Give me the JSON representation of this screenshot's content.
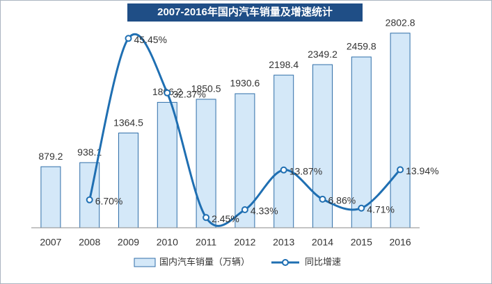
{
  "chart_data": {
    "type": "bar",
    "title": "2007-2016年国内汽车销量及增速统计",
    "categories": [
      "2007",
      "2008",
      "2009",
      "2010",
      "2011",
      "2012",
      "2013",
      "2014",
      "2015",
      "2016"
    ],
    "series": [
      {
        "name": "国内汽车销量（万辆）",
        "type": "bar",
        "color": "#d4e8f8",
        "stroke": "#2f6ea8",
        "values": [
          879.2,
          938.1,
          1364.5,
          1806.2,
          1850.5,
          1930.6,
          2198.4,
          2349.2,
          2459.8,
          2802.8
        ]
      },
      {
        "name": "同比增速",
        "type": "line",
        "axis": "y2",
        "color": "#1f6fb2",
        "values": [
          null,
          6.7,
          45.45,
          32.37,
          2.45,
          4.33,
          13.87,
          6.86,
          4.71,
          13.94
        ],
        "value_labels": [
          null,
          "6.70%",
          "45.45%",
          "32.37%",
          "2.45%",
          "4.33%",
          "13.87%",
          "6.86%",
          "4.71%",
          "13.94%"
        ]
      }
    ],
    "ylim": [
      0,
      3000
    ],
    "y2lim": [
      0,
      50
    ],
    "legend": "bottom"
  }
}
